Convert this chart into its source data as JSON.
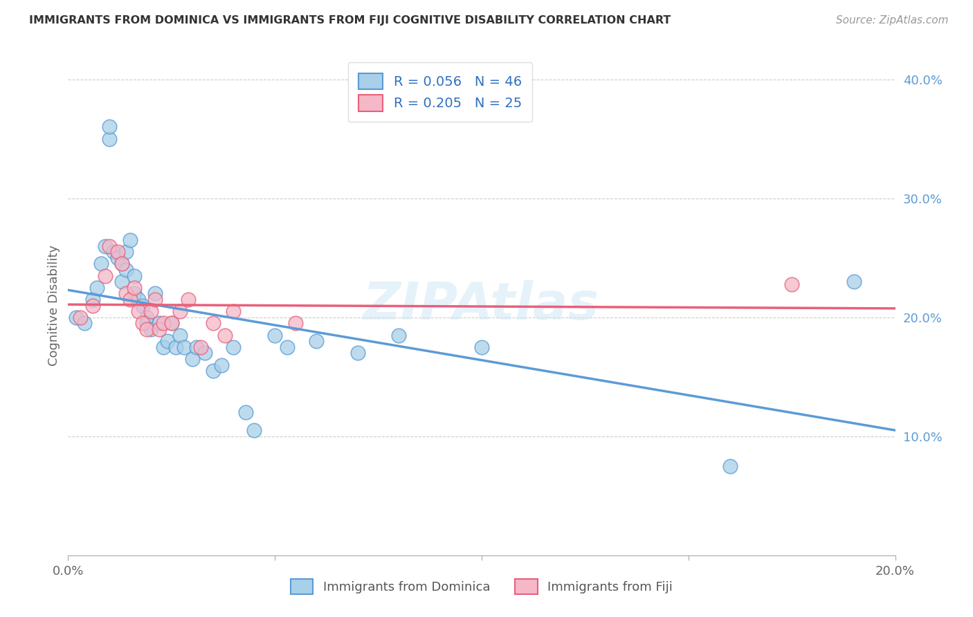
{
  "title": "IMMIGRANTS FROM DOMINICA VS IMMIGRANTS FROM FIJI COGNITIVE DISABILITY CORRELATION CHART",
  "source": "Source: ZipAtlas.com",
  "ylabel": "Cognitive Disability",
  "xlim": [
    0.0,
    0.2
  ],
  "ylim": [
    0.0,
    0.42
  ],
  "legend1_label": "R = 0.056   N = 46",
  "legend2_label": "R = 0.205   N = 25",
  "legend_xlabel1": "Immigrants from Dominica",
  "legend_xlabel2": "Immigrants from Fiji",
  "color_dominica": "#A8D0E8",
  "color_fiji": "#F4B8C8",
  "color_dominica_line": "#5B9BD5",
  "color_fiji_line": "#E8607A",
  "watermark": "ZIPAtlas",
  "dominica_x": [
    0.002,
    0.004,
    0.006,
    0.007,
    0.008,
    0.009,
    0.01,
    0.01,
    0.011,
    0.012,
    0.013,
    0.013,
    0.014,
    0.014,
    0.015,
    0.016,
    0.016,
    0.017,
    0.018,
    0.019,
    0.019,
    0.02,
    0.021,
    0.022,
    0.023,
    0.024,
    0.025,
    0.026,
    0.027,
    0.028,
    0.03,
    0.031,
    0.033,
    0.035,
    0.037,
    0.04,
    0.043,
    0.045,
    0.05,
    0.053,
    0.06,
    0.07,
    0.08,
    0.1,
    0.16,
    0.19
  ],
  "dominica_y": [
    0.2,
    0.195,
    0.215,
    0.225,
    0.245,
    0.26,
    0.35,
    0.36,
    0.255,
    0.25,
    0.245,
    0.23,
    0.255,
    0.24,
    0.265,
    0.22,
    0.235,
    0.215,
    0.21,
    0.2,
    0.195,
    0.19,
    0.22,
    0.195,
    0.175,
    0.18,
    0.195,
    0.175,
    0.185,
    0.175,
    0.165,
    0.175,
    0.17,
    0.155,
    0.16,
    0.175,
    0.12,
    0.105,
    0.185,
    0.175,
    0.18,
    0.17,
    0.185,
    0.175,
    0.075,
    0.23
  ],
  "fiji_x": [
    0.003,
    0.006,
    0.009,
    0.01,
    0.012,
    0.013,
    0.014,
    0.015,
    0.016,
    0.017,
    0.018,
    0.019,
    0.02,
    0.021,
    0.022,
    0.023,
    0.025,
    0.027,
    0.029,
    0.032,
    0.035,
    0.038,
    0.04,
    0.055,
    0.175
  ],
  "fiji_y": [
    0.2,
    0.21,
    0.235,
    0.26,
    0.255,
    0.245,
    0.22,
    0.215,
    0.225,
    0.205,
    0.195,
    0.19,
    0.205,
    0.215,
    0.19,
    0.195,
    0.195,
    0.205,
    0.215,
    0.175,
    0.195,
    0.185,
    0.205,
    0.195,
    0.228
  ]
}
